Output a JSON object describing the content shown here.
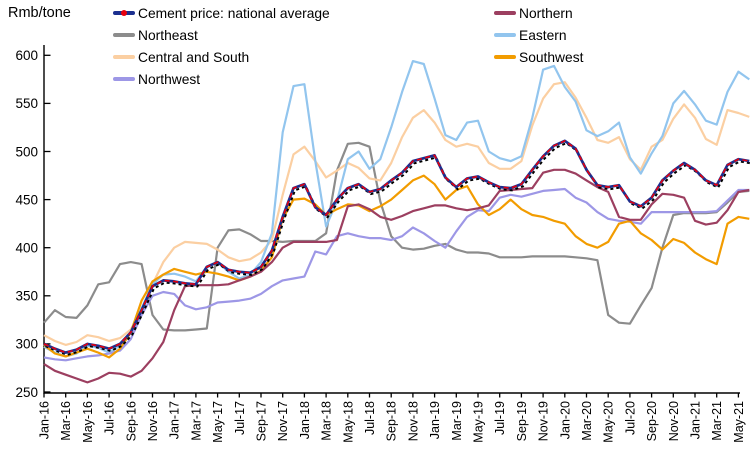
{
  "header": {
    "y_axis_unit": "Rmb/tone"
  },
  "chart_data": {
    "type": "line",
    "title": "",
    "xlabel": "",
    "ylabel": "Rmb/tone",
    "ylim": [
      250,
      600
    ],
    "y_ticks": [
      250,
      300,
      350,
      400,
      450,
      500,
      550,
      600
    ],
    "grid": false,
    "legend_position": "top",
    "x_tick_labels": [
      "Jan-16",
      "Mar-16",
      "May-16",
      "Jul-16",
      "Sep-16",
      "Nov-16",
      "Jan-17",
      "Mar-17",
      "May-17",
      "Jul-17",
      "Sep-17",
      "Nov-17",
      "Jan-18",
      "Mar-18",
      "May-18",
      "Jul-18",
      "Sep-18",
      "Nov-18",
      "Jan-19",
      "Mar-19",
      "May-19",
      "Jul-19",
      "Sep-19",
      "Nov-19",
      "Jan-20",
      "Mar-20",
      "May-20",
      "Jul-20",
      "Sep-20",
      "Nov-20",
      "Jan-21",
      "Mar-21",
      "May-21"
    ],
    "legend": {
      "columns": [
        [
          "Cement price: national average",
          "Northeast",
          "Central and South",
          "Northwest"
        ],
        [
          "Northern",
          "Eastern",
          "Southwest"
        ]
      ]
    },
    "colors": {
      "national_navy": "#1b2f8f",
      "national_red": "#e8000d",
      "national_black": "#000000"
    },
    "series": [
      {
        "name": "Northeast",
        "color": "#8c8c8c",
        "values": [
          322,
          335,
          328,
          327,
          340,
          362,
          364,
          383,
          385,
          383,
          330,
          315,
          314,
          314,
          315,
          316,
          400,
          418,
          419,
          414,
          407,
          407,
          406,
          407,
          407,
          407,
          415,
          480,
          508,
          509,
          505,
          448,
          412,
          400,
          398,
          399,
          402,
          404,
          398,
          395,
          395,
          394,
          390,
          390,
          390,
          391,
          391,
          391,
          391,
          390,
          389,
          387,
          330,
          322,
          321,
          340,
          358,
          400,
          434,
          436,
          436,
          436,
          437,
          447,
          458,
          459
        ]
      },
      {
        "name": "Central and South",
        "color": "#fbcfa2",
        "values": [
          309,
          303,
          299,
          302,
          309,
          307,
          303,
          306,
          315,
          335,
          362,
          385,
          400,
          406,
          405,
          404,
          398,
          390,
          386,
          388,
          395,
          408,
          455,
          497,
          505,
          490,
          473,
          480,
          488,
          483,
          472,
          470,
          488,
          515,
          535,
          543,
          530,
          512,
          505,
          508,
          505,
          488,
          482,
          482,
          490,
          527,
          555,
          570,
          572,
          556,
          535,
          512,
          509,
          515,
          492,
          481,
          505,
          512,
          534,
          549,
          535,
          513,
          507,
          543,
          540,
          536
        ]
      },
      {
        "name": "Eastern",
        "color": "#92c5ee",
        "values": [
          297,
          291,
          287,
          290,
          298,
          296,
          291,
          298,
          312,
          337,
          362,
          372,
          373,
          370,
          365,
          380,
          385,
          375,
          368,
          372,
          385,
          415,
          520,
          568,
          570,
          490,
          422,
          448,
          492,
          500,
          482,
          492,
          525,
          562,
          594,
          591,
          555,
          517,
          512,
          530,
          532,
          500,
          493,
          490,
          495,
          535,
          585,
          589,
          567,
          552,
          522,
          516,
          521,
          530,
          494,
          477,
          498,
          516,
          550,
          563,
          549,
          532,
          528,
          562,
          583,
          575
        ]
      },
      {
        "name": "Northwest",
        "color": "#9d97e6",
        "values": [
          286,
          284,
          283,
          285,
          287,
          288,
          290,
          293,
          305,
          330,
          350,
          354,
          352,
          340,
          336,
          338,
          343,
          344,
          345,
          347,
          352,
          360,
          366,
          368,
          370,
          396,
          393,
          412,
          415,
          412,
          410,
          410,
          408,
          412,
          421,
          415,
          407,
          400,
          417,
          432,
          439,
          438,
          452,
          455,
          453,
          456,
          459,
          460,
          461,
          452,
          447,
          437,
          430,
          428,
          427,
          425,
          437,
          437,
          437,
          437,
          437,
          437,
          438,
          449,
          460,
          460
        ]
      },
      {
        "name": "Southwest",
        "color": "#f29c00",
        "values": [
          299,
          290,
          287,
          291,
          295,
          291,
          286,
          295,
          312,
          345,
          365,
          372,
          378,
          375,
          372,
          375,
          373,
          370,
          366,
          370,
          376,
          390,
          430,
          450,
          451,
          445,
          434,
          440,
          445,
          444,
          438,
          443,
          450,
          460,
          470,
          475,
          466,
          450,
          460,
          464,
          445,
          434,
          440,
          450,
          440,
          434,
          432,
          428,
          425,
          412,
          404,
          400,
          406,
          425,
          428,
          415,
          408,
          398,
          409,
          405,
          395,
          388,
          383,
          425,
          432,
          430
        ]
      },
      {
        "name": "Northern",
        "color": "#9c3f60",
        "values": [
          279,
          272,
          268,
          264,
          260,
          264,
          270,
          269,
          266,
          272,
          285,
          302,
          335,
          360,
          361,
          361,
          361,
          362,
          366,
          370,
          375,
          385,
          400,
          406,
          406,
          406,
          406,
          408,
          443,
          445,
          440,
          432,
          429,
          433,
          438,
          441,
          444,
          444,
          441,
          439,
          441,
          444,
          459,
          460,
          461,
          462,
          478,
          481,
          481,
          477,
          470,
          463,
          458,
          432,
          429,
          429,
          445,
          456,
          455,
          452,
          428,
          424,
          426,
          439,
          458,
          460
        ]
      },
      {
        "name": "Cement price: national average",
        "color": "#1b2f8f",
        "style": "national",
        "values": [
          300,
          295,
          291,
          294,
          300,
          298,
          295,
          300,
          312,
          335,
          360,
          366,
          365,
          363,
          362,
          380,
          385,
          377,
          375,
          374,
          380,
          397,
          432,
          462,
          466,
          442,
          434,
          450,
          462,
          466,
          458,
          461,
          470,
          478,
          490,
          493,
          496,
          473,
          463,
          472,
          474,
          468,
          463,
          462,
          466,
          481,
          495,
          506,
          511,
          503,
          481,
          465,
          463,
          465,
          448,
          443,
          452,
          470,
          480,
          488,
          481,
          470,
          465,
          486,
          492,
          490
        ]
      }
    ]
  }
}
